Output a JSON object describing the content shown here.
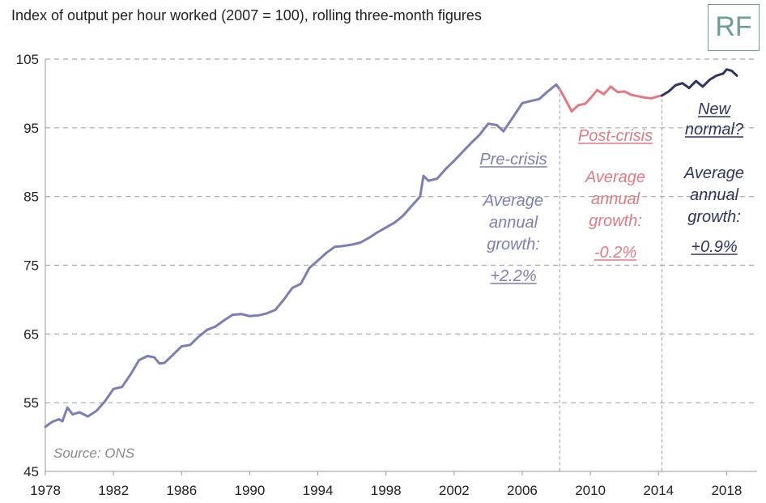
{
  "chart_data": {
    "type": "line",
    "title": "Index of output per hour worked (2007 = 100), rolling three-month figures",
    "ylim": [
      45,
      105
    ],
    "yticks": [
      45,
      55,
      65,
      75,
      85,
      95,
      105
    ],
    "xlim": [
      1978,
      2018.6
    ],
    "xticks": [
      1978,
      1982,
      1986,
      1990,
      1994,
      1998,
      2002,
      2006,
      2010,
      2014,
      2018
    ],
    "source": "Source: ONS",
    "logo": "RF",
    "gridlines": "horizontal dashed",
    "series": [
      {
        "name": "Pre-crisis",
        "color": "#7b7fb5",
        "points": [
          [
            1978.0,
            51.5
          ],
          [
            1978.4,
            52.2
          ],
          [
            1978.8,
            52.6
          ],
          [
            1979.0,
            52.3
          ],
          [
            1979.3,
            54.3
          ],
          [
            1979.6,
            53.3
          ],
          [
            1980.0,
            53.6
          ],
          [
            1980.5,
            53.0
          ],
          [
            1981.0,
            53.8
          ],
          [
            1981.5,
            55.2
          ],
          [
            1982.0,
            57.0
          ],
          [
            1982.5,
            57.3
          ],
          [
            1983.0,
            59.1
          ],
          [
            1983.5,
            61.2
          ],
          [
            1984.0,
            61.8
          ],
          [
            1984.4,
            61.6
          ],
          [
            1984.7,
            60.7
          ],
          [
            1985.0,
            60.8
          ],
          [
            1985.5,
            62.0
          ],
          [
            1986.0,
            63.2
          ],
          [
            1986.5,
            63.4
          ],
          [
            1987.0,
            64.6
          ],
          [
            1987.5,
            65.6
          ],
          [
            1988.0,
            66.1
          ],
          [
            1988.5,
            67.0
          ],
          [
            1989.0,
            67.8
          ],
          [
            1989.5,
            67.9
          ],
          [
            1990.0,
            67.6
          ],
          [
            1990.5,
            67.7
          ],
          [
            1991.0,
            68.0
          ],
          [
            1991.5,
            68.5
          ],
          [
            1992.0,
            70.0
          ],
          [
            1992.5,
            71.7
          ],
          [
            1993.0,
            72.3
          ],
          [
            1993.5,
            74.6
          ],
          [
            1994.0,
            75.7
          ],
          [
            1994.5,
            76.8
          ],
          [
            1995.0,
            77.7
          ],
          [
            1995.5,
            77.8
          ],
          [
            1996.0,
            78.0
          ],
          [
            1996.5,
            78.3
          ],
          [
            1997.0,
            79.0
          ],
          [
            1997.5,
            79.8
          ],
          [
            1998.0,
            80.5
          ],
          [
            1998.5,
            81.2
          ],
          [
            1999.0,
            82.2
          ],
          [
            1999.5,
            83.6
          ],
          [
            2000.0,
            85.0
          ],
          [
            2000.2,
            88.0
          ],
          [
            2000.5,
            87.3
          ],
          [
            2001.0,
            87.6
          ],
          [
            2001.5,
            89.0
          ],
          [
            2002.0,
            90.2
          ],
          [
            2002.5,
            91.5
          ],
          [
            2003.0,
            92.8
          ],
          [
            2003.5,
            94.0
          ],
          [
            2004.0,
            95.6
          ],
          [
            2004.5,
            95.4
          ],
          [
            2004.9,
            94.5
          ],
          [
            2005.2,
            95.6
          ],
          [
            2005.5,
            96.7
          ],
          [
            2006.0,
            98.6
          ],
          [
            2006.5,
            98.9
          ],
          [
            2007.0,
            99.2
          ],
          [
            2007.5,
            100.3
          ],
          [
            2008.0,
            101.3
          ],
          [
            2008.2,
            100.6
          ]
        ]
      },
      {
        "name": "Post-crisis",
        "color": "#e07b86",
        "points": [
          [
            2008.2,
            100.6
          ],
          [
            2008.5,
            99.3
          ],
          [
            2008.9,
            97.4
          ],
          [
            2009.3,
            98.3
          ],
          [
            2009.7,
            98.5
          ],
          [
            2010.0,
            99.3
          ],
          [
            2010.4,
            100.5
          ],
          [
            2010.8,
            99.9
          ],
          [
            2011.2,
            101.0
          ],
          [
            2011.6,
            100.2
          ],
          [
            2012.0,
            100.3
          ],
          [
            2012.4,
            99.8
          ],
          [
            2012.8,
            99.6
          ],
          [
            2013.2,
            99.4
          ],
          [
            2013.6,
            99.3
          ],
          [
            2014.0,
            99.6
          ],
          [
            2014.2,
            99.7
          ]
        ]
      },
      {
        "name": "New normal?",
        "color": "#2e3560",
        "points": [
          [
            2014.2,
            99.7
          ],
          [
            2014.6,
            100.3
          ],
          [
            2015.0,
            101.2
          ],
          [
            2015.4,
            101.5
          ],
          [
            2015.8,
            100.8
          ],
          [
            2016.2,
            101.8
          ],
          [
            2016.6,
            101.0
          ],
          [
            2017.0,
            102.0
          ],
          [
            2017.4,
            102.6
          ],
          [
            2017.8,
            102.9
          ],
          [
            2018.0,
            103.5
          ],
          [
            2018.3,
            103.3
          ],
          [
            2018.6,
            102.6
          ]
        ]
      }
    ],
    "dividers": [
      2008.2,
      2014.2
    ],
    "annotations": [
      {
        "key": "pre",
        "title": "Pre-crisis",
        "body": [
          "Average",
          "annual",
          "growth:"
        ],
        "value": "+2.2%",
        "color": "#7b7fb5"
      },
      {
        "key": "post",
        "title": "Post-crisis",
        "body": [
          "Average",
          "annual",
          "growth:"
        ],
        "value": "-0.2%",
        "color": "#e07b86"
      },
      {
        "key": "new",
        "title": [
          "New",
          "normal?"
        ],
        "body": [
          "Average",
          "annual",
          "growth:"
        ],
        "value": "+0.9%",
        "color": "#2e3560"
      }
    ]
  }
}
